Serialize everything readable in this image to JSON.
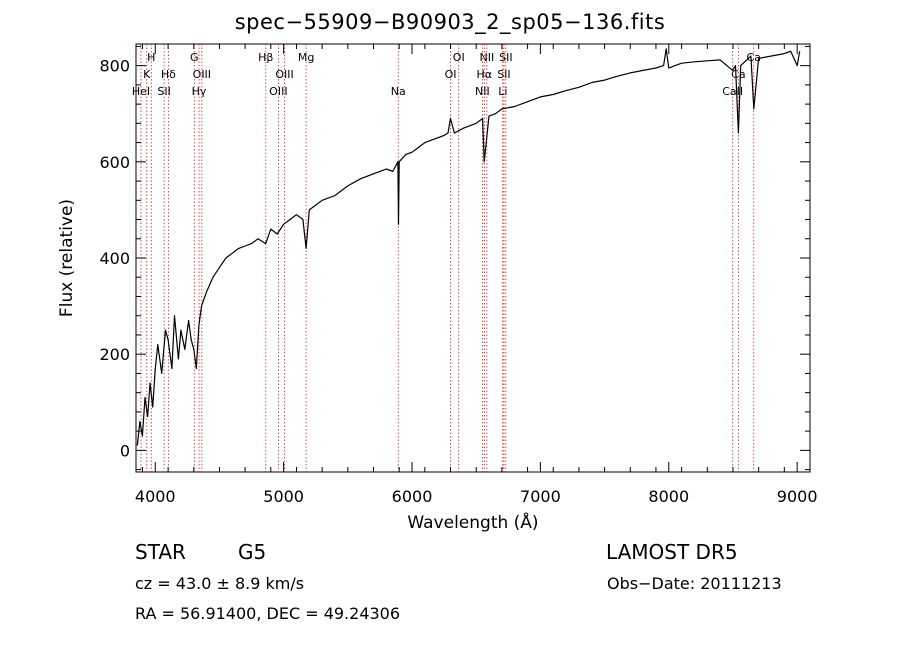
{
  "chart_data": {
    "type": "line",
    "title": "spec−55909−B90903_2_sp05−136.fits",
    "xlabel": "Wavelength (Å)",
    "ylabel": "Flux (relative)",
    "xlim": [
      3850,
      9100
    ],
    "ylim": [
      -45,
      845
    ],
    "x_ticks": [
      4000,
      5000,
      6000,
      7000,
      8000,
      9000
    ],
    "y_ticks": [
      0,
      200,
      400,
      600,
      800
    ],
    "grid": false,
    "series": [
      {
        "x": [
          3860,
          3880,
          3900,
          3920,
          3940,
          3960,
          3980,
          4000,
          4020,
          4050,
          4080,
          4100,
          4130,
          4150,
          4180,
          4200,
          4230,
          4260,
          4280,
          4300,
          4320,
          4340,
          4360,
          4400,
          4450,
          4500,
          4550,
          4600,
          4650,
          4700,
          4750,
          4800,
          4860,
          4900,
          4950,
          5000,
          5050,
          5100,
          5150,
          5175,
          5200,
          5250,
          5300,
          5400,
          5500,
          5600,
          5700,
          5800,
          5850,
          5890,
          5895,
          5900,
          5950,
          6000,
          6100,
          6200,
          6250,
          6280,
          6300,
          6330,
          6400,
          6500,
          6550,
          6562,
          6600,
          6650,
          6700,
          6800,
          6900,
          7000,
          7100,
          7200,
          7300,
          7400,
          7500,
          7600,
          7700,
          7800,
          7900,
          7960,
          7980,
          8000,
          8050,
          8100,
          8200,
          8300,
          8400,
          8498,
          8520,
          8542,
          8560,
          8600,
          8640,
          8662,
          8700,
          8800,
          8900,
          8950,
          9000,
          9020
        ],
        "y": [
          10,
          60,
          30,
          110,
          70,
          140,
          90,
          170,
          220,
          160,
          250,
          230,
          170,
          280,
          190,
          250,
          210,
          270,
          230,
          210,
          170,
          260,
          300,
          330,
          360,
          380,
          400,
          410,
          420,
          425,
          430,
          440,
          430,
          460,
          450,
          470,
          480,
          490,
          480,
          420,
          500,
          510,
          520,
          530,
          550,
          565,
          575,
          585,
          580,
          600,
          470,
          600,
          615,
          620,
          640,
          650,
          655,
          660,
          690,
          660,
          670,
          680,
          690,
          600,
          695,
          700,
          710,
          715,
          725,
          735,
          740,
          748,
          755,
          765,
          770,
          778,
          785,
          790,
          795,
          800,
          835,
          795,
          800,
          805,
          808,
          810,
          812,
          790,
          800,
          660,
          800,
          810,
          820,
          710,
          815,
          820,
          825,
          830,
          800,
          830
        ]
      }
    ],
    "line_markers": [
      {
        "label": "H",
        "x": 3969,
        "row": 0
      },
      {
        "label": "K",
        "x": 3934,
        "row": 1
      },
      {
        "label": "HeI",
        "x": 3889,
        "row": 2
      },
      {
        "label": "Hδ",
        "x": 4102,
        "row": 1
      },
      {
        "label": "SII",
        "x": 4069,
        "row": 2
      },
      {
        "label": "G",
        "x": 4304,
        "row": 0
      },
      {
        "label": "OIII",
        "x": 4363,
        "row": 1
      },
      {
        "label": "Hγ",
        "x": 4341,
        "row": 2
      },
      {
        "label": "Hβ",
        "x": 4861,
        "row": 0
      },
      {
        "label": "OIII",
        "x": 5007,
        "row": 1
      },
      {
        "label": "OIII",
        "x": 4959,
        "row": 2
      },
      {
        "label": "Mg",
        "x": 5175,
        "row": 0
      },
      {
        "label": "Na",
        "x": 5893,
        "row": 2
      },
      {
        "label": "OI",
        "x": 6364,
        "row": 0
      },
      {
        "label": "OI",
        "x": 6300,
        "row": 1
      },
      {
        "label": "NII",
        "x": 6583,
        "row": 0
      },
      {
        "label": "Hα",
        "x": 6563,
        "row": 1
      },
      {
        "label": "NII",
        "x": 6548,
        "row": 2
      },
      {
        "label": "SII",
        "x": 6731,
        "row": 0
      },
      {
        "label": "SII",
        "x": 6716,
        "row": 1
      },
      {
        "label": "Li",
        "x": 6707,
        "row": 2
      },
      {
        "label": "Ca",
        "x": 8662,
        "row": 0
      },
      {
        "label": "Ca",
        "x": 8542,
        "row": 1
      },
      {
        "label": "CaII",
        "x": 8498,
        "row": 2
      }
    ],
    "colors": {
      "marker_line": "#cc2222",
      "spectrum": "#000000"
    }
  },
  "info": {
    "class": "STAR",
    "subclass": "G5",
    "survey": "LAMOST  DR5",
    "cz": "cz = 43.0 ± 8.9 km/s",
    "obs_date": "Obs−Date: 20111213",
    "radec": "RA =  56.91400, DEC =  49.24306"
  }
}
